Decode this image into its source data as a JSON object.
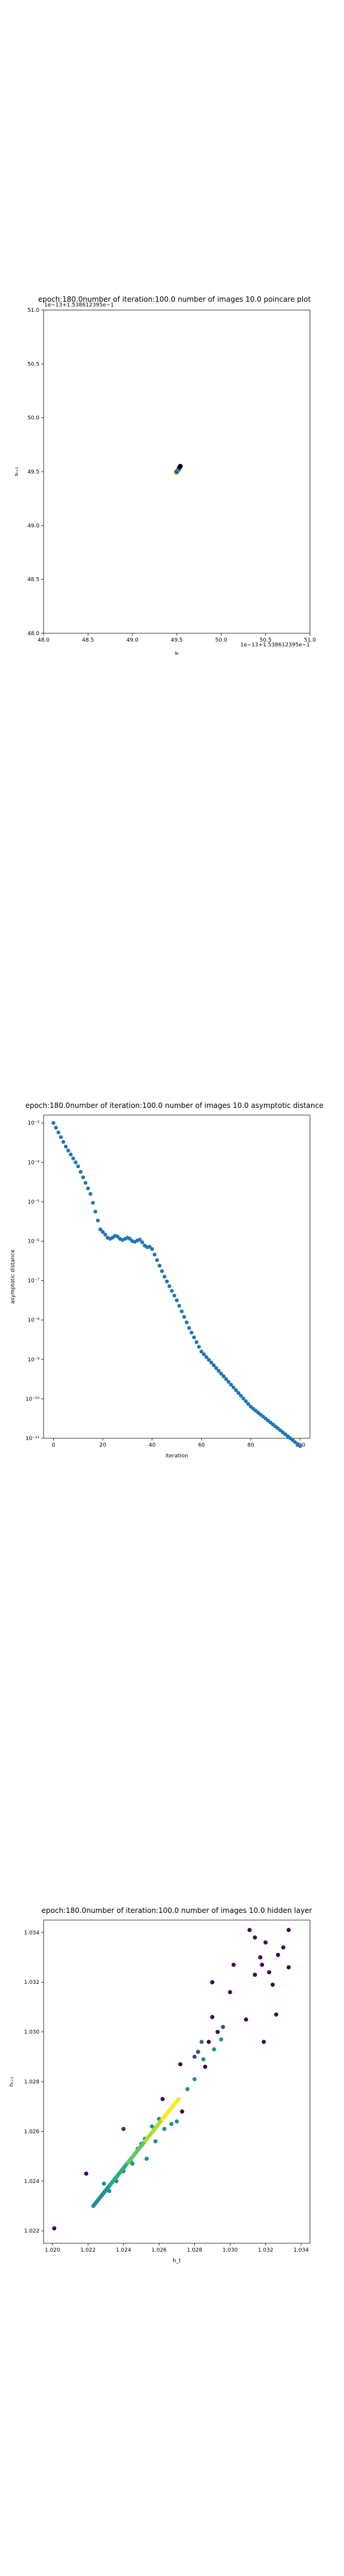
{
  "chart_data": [
    {
      "type": "scatter",
      "title": "epoch:180.0number of iteration:100.0 number of images 10.0 poincare plot",
      "xlabel": "sₜ",
      "ylabel": "sₜ₊₁",
      "xlim": [
        48.0,
        51.0
      ],
      "ylim": [
        48.0,
        51.0
      ],
      "xticks": [
        "48.0",
        "48.5",
        "49.0",
        "49.5",
        "50.0",
        "50.5",
        "51.0"
      ],
      "yticks": [
        "48.0",
        "48.5",
        "49.0",
        "49.5",
        "50.0",
        "50.5",
        "51.0"
      ],
      "offset_top": "1e−13+1.538612395e−1",
      "offset_bottom": "1e−13+1.538612395e−1",
      "points": [
        {
          "x": 49.49,
          "y": 49.49,
          "color": "#fde725"
        },
        {
          "x": 49.5,
          "y": 49.5,
          "color": "#3b528b"
        },
        {
          "x": 49.52,
          "y": 49.52,
          "color": "#21918c"
        },
        {
          "x": 49.53,
          "y": 49.54,
          "color": "#440154"
        },
        {
          "x": 49.54,
          "y": 49.55,
          "color": "#000000"
        }
      ],
      "grid": false
    },
    {
      "type": "scatter",
      "title": "epoch:180.0number of iteration:100.0  number of images 10.0 asymptotic distance",
      "xlabel": "iteration",
      "ylabel": "asymptotic distance",
      "yscale": "log",
      "xlim": [
        -4,
        104
      ],
      "xticks": [
        "0",
        "20",
        "40",
        "60",
        "80",
        "100"
      ],
      "yticks": [
        "10⁻¹¹",
        "10⁻¹⁰",
        "10⁻⁹",
        "10⁻⁸",
        "10⁻⁷",
        "10⁻⁶",
        "10⁻⁵",
        "10⁻⁴",
        "10⁻³"
      ],
      "ylim_exp": [
        -11,
        -2.8
      ],
      "color": "#1f77b4",
      "log10_anchors": [
        [
          0,
          -3.0
        ],
        [
          5,
          -3.6
        ],
        [
          10,
          -4.1
        ],
        [
          15,
          -4.8
        ],
        [
          19,
          -5.7
        ],
        [
          22,
          -5.9
        ],
        [
          25,
          -5.9
        ],
        [
          35,
          -6.0
        ],
        [
          40,
          -6.2
        ],
        [
          45,
          -6.9
        ],
        [
          50,
          -7.5
        ],
        [
          55,
          -8.2
        ],
        [
          60,
          -8.8
        ],
        [
          70,
          -9.5
        ],
        [
          80,
          -10.2
        ],
        [
          90,
          -10.7
        ],
        [
          100,
          -11.2
        ]
      ],
      "n_points": 101,
      "grid": false
    },
    {
      "type": "scatter",
      "title": "epoch:180.0number of iteration:100.0  number of images 10.0 hidden layer",
      "xlabel": "h_t",
      "ylabel": "hₜ₊₁",
      "xlim": [
        1.0195,
        1.0345
      ],
      "ylim": [
        1.0215,
        1.0345
      ],
      "xticks": [
        "1.020",
        "1.022",
        "1.024",
        "1.026",
        "1.028",
        "1.030",
        "1.032",
        "1.034"
      ],
      "yticks": [
        "1.022",
        "1.024",
        "1.026",
        "1.028",
        "1.030",
        "1.032",
        "1.034"
      ],
      "points": [
        [
          1.0201,
          1.0221,
          "#440154"
        ],
        [
          1.0219,
          1.0243,
          "#440154"
        ],
        [
          1.024,
          1.0261,
          "#482878"
        ],
        [
          1.0262,
          1.0273,
          "#440154"
        ],
        [
          1.0273,
          1.0268,
          "#440154"
        ],
        [
          1.0272,
          1.0287,
          "#440154"
        ],
        [
          1.028,
          1.029,
          "#3e4a89"
        ],
        [
          1.0282,
          1.0292,
          "#3e4a89"
        ],
        [
          1.0284,
          1.0296,
          "#31688e"
        ],
        [
          1.0286,
          1.0286,
          "#440154"
        ],
        [
          1.0288,
          1.0296,
          "#440154"
        ],
        [
          1.029,
          1.0306,
          "#440154"
        ],
        [
          1.029,
          1.032,
          "#440154"
        ],
        [
          1.0293,
          1.03,
          "#440154"
        ],
        [
          1.0296,
          1.0302,
          "#3b528b"
        ],
        [
          1.03,
          1.0316,
          "#440154"
        ],
        [
          1.0302,
          1.0327,
          "#440154"
        ],
        [
          1.0309,
          1.0305,
          "#440154"
        ],
        [
          1.0311,
          1.0341,
          "#440154"
        ],
        [
          1.0314,
          1.0338,
          "#440154"
        ],
        [
          1.0314,
          1.0323,
          "#440154"
        ],
        [
          1.0317,
          1.033,
          "#440154"
        ],
        [
          1.0318,
          1.0327,
          "#440154"
        ],
        [
          1.0319,
          1.0296,
          "#440154"
        ],
        [
          1.032,
          1.0336,
          "#440154"
        ],
        [
          1.0322,
          1.0324,
          "#440154"
        ],
        [
          1.0324,
          1.0319,
          "#440154"
        ],
        [
          1.0326,
          1.0307,
          "#440154"
        ],
        [
          1.0327,
          1.0331,
          "#440154"
        ],
        [
          1.033,
          1.0334,
          "#440154"
        ],
        [
          1.0333,
          1.0341,
          "#440154"
        ],
        [
          1.0333,
          1.0326,
          "#440154"
        ],
        [
          1.0229,
          1.0239,
          "#21918c"
        ],
        [
          1.0232,
          1.0236,
          "#21918c"
        ],
        [
          1.0236,
          1.024,
          "#21918c"
        ],
        [
          1.024,
          1.0244,
          "#21918c"
        ],
        [
          1.0244,
          1.0248,
          "#21918c"
        ],
        [
          1.0248,
          1.0253,
          "#21918c"
        ],
        [
          1.0252,
          1.0257,
          "#21918c"
        ],
        [
          1.0256,
          1.0262,
          "#21918c"
        ],
        [
          1.0245,
          1.0247,
          "#21918c"
        ],
        [
          1.025,
          1.0255,
          "#21918c"
        ],
        [
          1.026,
          1.0265,
          "#21918c"
        ],
        [
          1.0263,
          1.0261,
          "#21918c"
        ],
        [
          1.0258,
          1.0256,
          "#21918c"
        ],
        [
          1.0253,
          1.0249,
          "#21918c"
        ],
        [
          1.0267,
          1.0263,
          "#21918c"
        ],
        [
          1.027,
          1.0264,
          "#21918c"
        ],
        [
          1.0276,
          1.0277,
          "#21918c"
        ],
        [
          1.028,
          1.0281,
          "#21918c"
        ],
        [
          1.0285,
          1.0289,
          "#21918c"
        ],
        [
          1.0291,
          1.0293,
          "#21918c"
        ],
        [
          1.0295,
          1.0297,
          "#21918c"
        ]
      ],
      "trajectory": {
        "start": [
          1.0223,
          1.023
        ],
        "end": [
          1.0271,
          1.0273
        ],
        "count": 60,
        "colors": [
          "#21918c",
          "#28ae80",
          "#5ec962",
          "#addc30",
          "#fde725"
        ]
      },
      "grid": false
    }
  ]
}
